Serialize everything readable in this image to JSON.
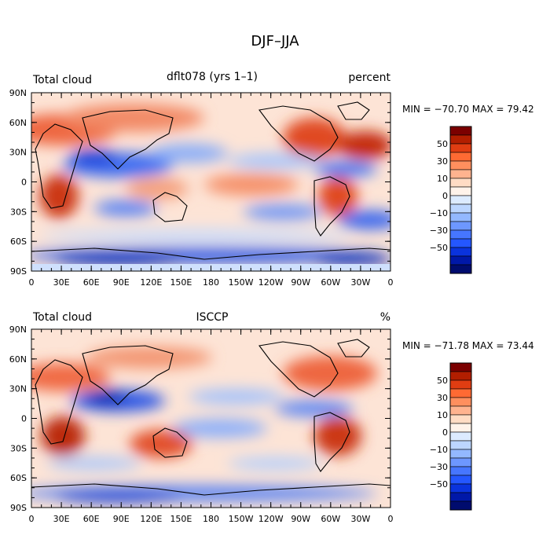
{
  "figure": {
    "title": "DJF–JJA"
  },
  "panels": [
    {
      "left_title": "Total cloud",
      "center_title": "dflt078 (yrs 1–1)",
      "right_title": "percent",
      "stats": "MIN = −70.70  MAX =  79.42",
      "min": -70.7,
      "max": 79.42
    },
    {
      "left_title": "Total cloud",
      "center_title": "ISCCP",
      "right_title": "%",
      "stats": "MIN = −71.78  MAX =  73.44",
      "min": -71.78,
      "max": 73.44
    }
  ],
  "axes": {
    "lat_labels": [
      "90N",
      "60N",
      "30N",
      "0",
      "30S",
      "60S",
      "90S"
    ],
    "lon_labels": [
      "0",
      "30E",
      "60E",
      "90E",
      "120E",
      "150E",
      "180",
      "150W",
      "120W",
      "90W",
      "60W",
      "30W",
      "0"
    ]
  },
  "colorbar": {
    "tick_labels": [
      "50",
      "30",
      "10",
      "0",
      "−10",
      "−30",
      "−50"
    ],
    "colors": [
      "#7b0000",
      "#b21e00",
      "#e03d12",
      "#ff6a33",
      "#ff8f5e",
      "#ffb38f",
      "#ffdcc4",
      "#fff3ea",
      "#dcebff",
      "#bcd6ff",
      "#93b8ff",
      "#6d97ff",
      "#4676ff",
      "#2457ff",
      "#0a33dd",
      "#0018a8",
      "#000c6e"
    ]
  }
}
